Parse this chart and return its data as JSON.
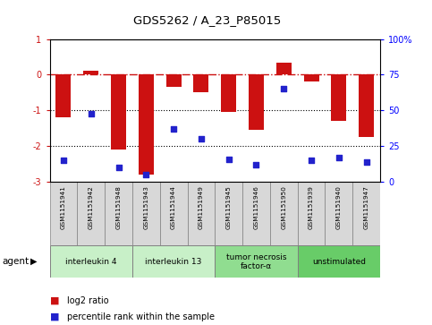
{
  "title": "GDS5262 / A_23_P85015",
  "samples": [
    "GSM1151941",
    "GSM1151942",
    "GSM1151948",
    "GSM1151943",
    "GSM1151944",
    "GSM1151949",
    "GSM1151945",
    "GSM1151946",
    "GSM1151950",
    "GSM1151939",
    "GSM1151940",
    "GSM1151947"
  ],
  "log2_ratios": [
    -1.2,
    0.1,
    -2.1,
    -2.8,
    -0.35,
    -0.5,
    -1.05,
    -1.55,
    0.35,
    -0.2,
    -1.3,
    -1.75
  ],
  "percentile_ranks": [
    15,
    48,
    10,
    5,
    37,
    30,
    16,
    12,
    65,
    15,
    17,
    14
  ],
  "ylim": [
    -3.0,
    1.0
  ],
  "right_ylim": [
    0,
    100
  ],
  "groups": [
    {
      "label": "interleukin 4",
      "start": 0,
      "end": 2,
      "color": "#c8f0c8"
    },
    {
      "label": "interleukin 13",
      "start": 3,
      "end": 5,
      "color": "#c8f0c8"
    },
    {
      "label": "tumor necrosis\nfactor-α",
      "start": 6,
      "end": 8,
      "color": "#90dd90"
    },
    {
      "label": "unstimulated",
      "start": 9,
      "end": 11,
      "color": "#68cc68"
    }
  ],
  "bar_color": "#cc1111",
  "dot_color": "#2222cc",
  "hline_color": "#cc1111",
  "dotted_lines": [
    -1,
    -2
  ],
  "yticks": [
    1,
    0,
    -1,
    -2,
    -3
  ],
  "right_yticks": [
    0,
    25,
    50,
    75,
    100
  ],
  "legend_bar_label": "log2 ratio",
  "legend_dot_label": "percentile rank within the sample",
  "agent_label": "agent"
}
